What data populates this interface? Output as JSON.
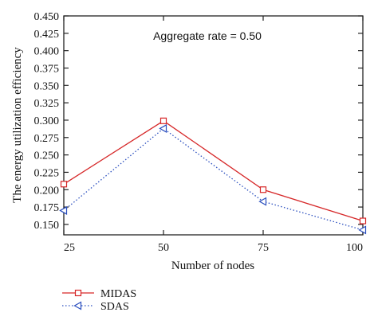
{
  "chart_data": {
    "type": "line",
    "xlabel": "Number of nodes",
    "ylabel": "The energy utilization efficiency",
    "annotation": "Aggregate rate = 0.50",
    "x": [
      25,
      50,
      75,
      100
    ],
    "x_ticks": [
      "25",
      "50",
      "75",
      "100"
    ],
    "xlim": [
      25,
      100
    ],
    "y_ticks": [
      "0.150",
      "0.175",
      "0.200",
      "0.225",
      "0.250",
      "0.275",
      "0.300",
      "0.325",
      "0.350",
      "0.375",
      "0.400",
      "0.425",
      "0.450"
    ],
    "ylim": [
      0.135,
      0.45
    ],
    "grid": false,
    "legend_position": "bottom-left, below plot",
    "series": [
      {
        "name": "MIDAS",
        "values": [
          0.208,
          0.299,
          0.2,
          0.155
        ],
        "color": "#d62728",
        "line": "solid",
        "marker": "square"
      },
      {
        "name": "SDAS",
        "values": [
          0.17,
          0.288,
          0.183,
          0.142
        ],
        "color": "#2b4fbf",
        "line": "dotted",
        "marker": "triangle-left"
      }
    ]
  }
}
